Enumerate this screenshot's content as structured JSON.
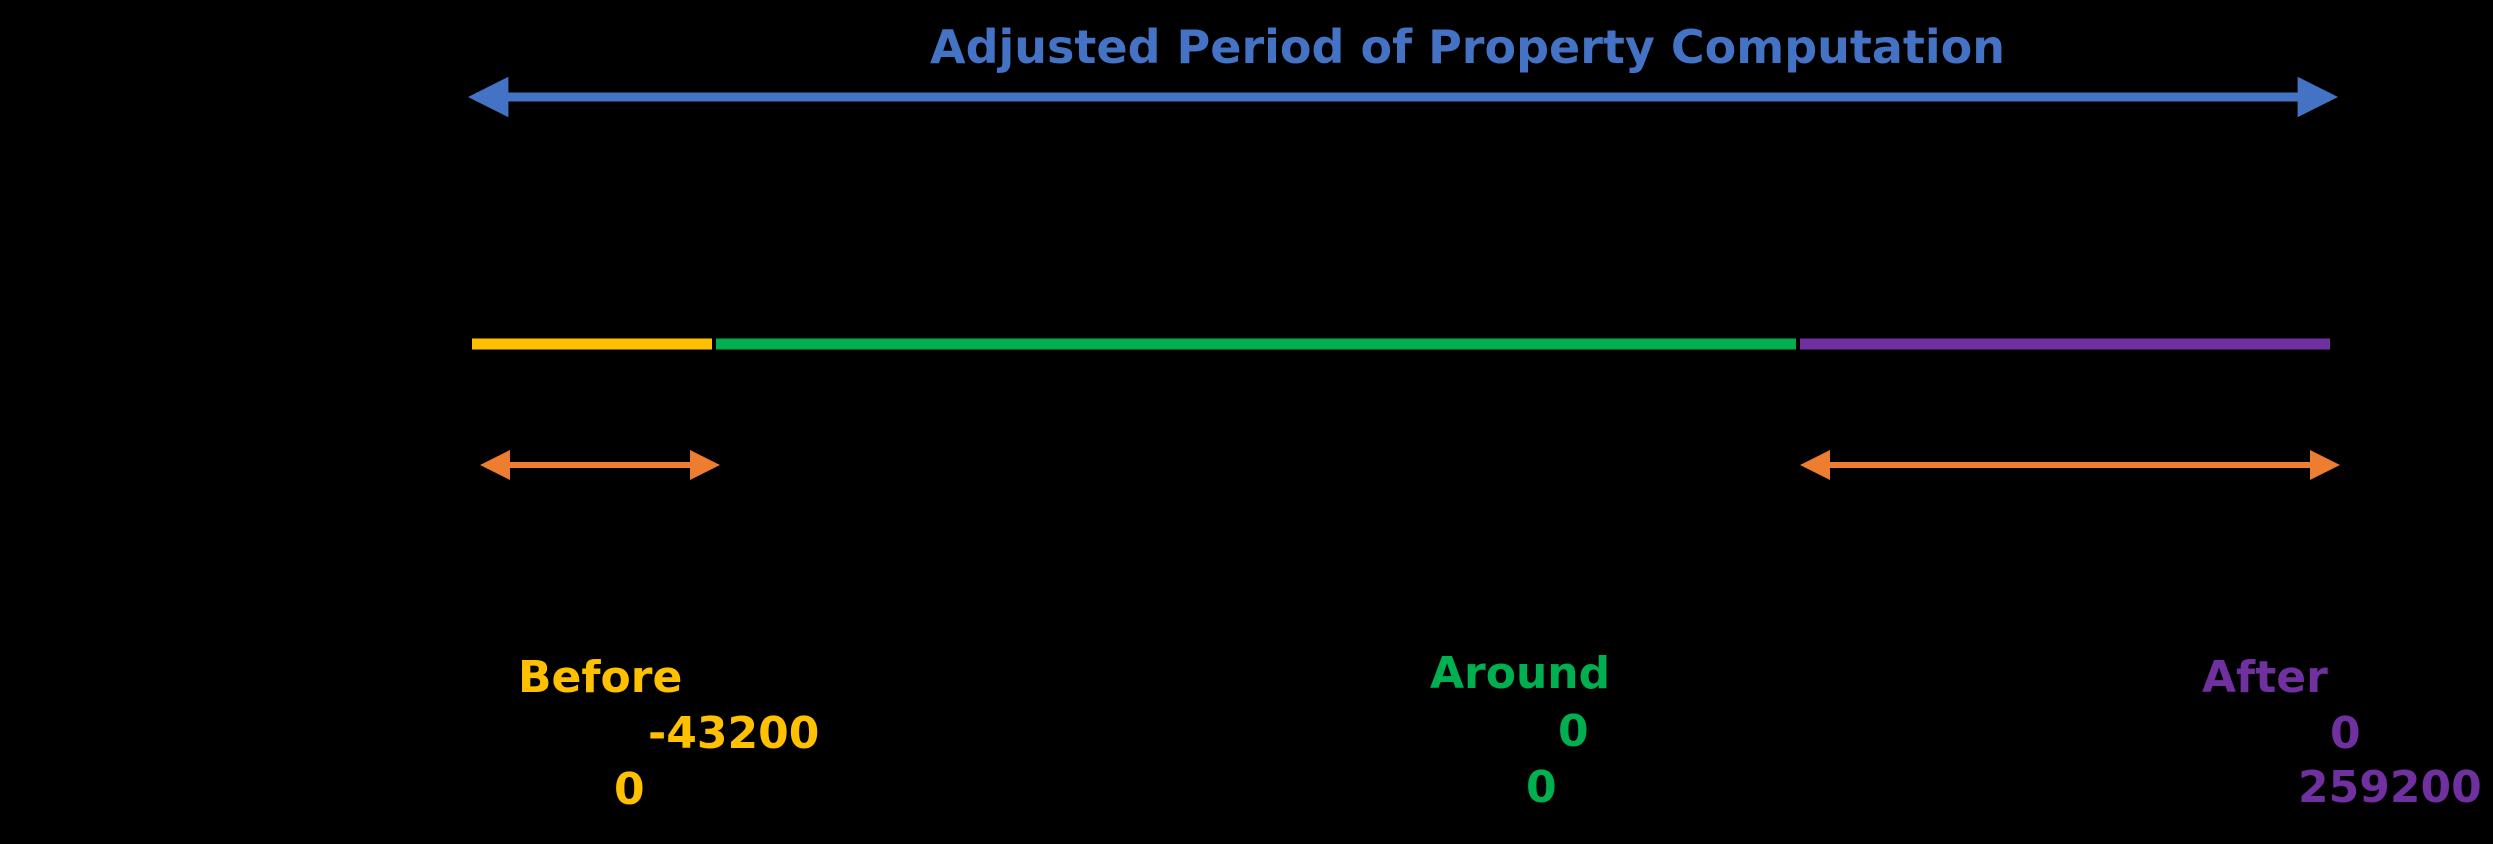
{
  "title": "Adjusted Period of Property Computation",
  "colors": {
    "background": "#000000",
    "title": "#4472C4",
    "before": "#FFC000",
    "around": "#00B050",
    "after": "#7030A0",
    "offset_arrow": "#ED7D31"
  },
  "segments": {
    "before": {
      "label": "Before",
      "start": "-43200",
      "end": "0"
    },
    "around": {
      "label": "Around",
      "start": "0",
      "end": "0"
    },
    "after": {
      "label": "After",
      "start": "0",
      "end": "259200"
    }
  }
}
